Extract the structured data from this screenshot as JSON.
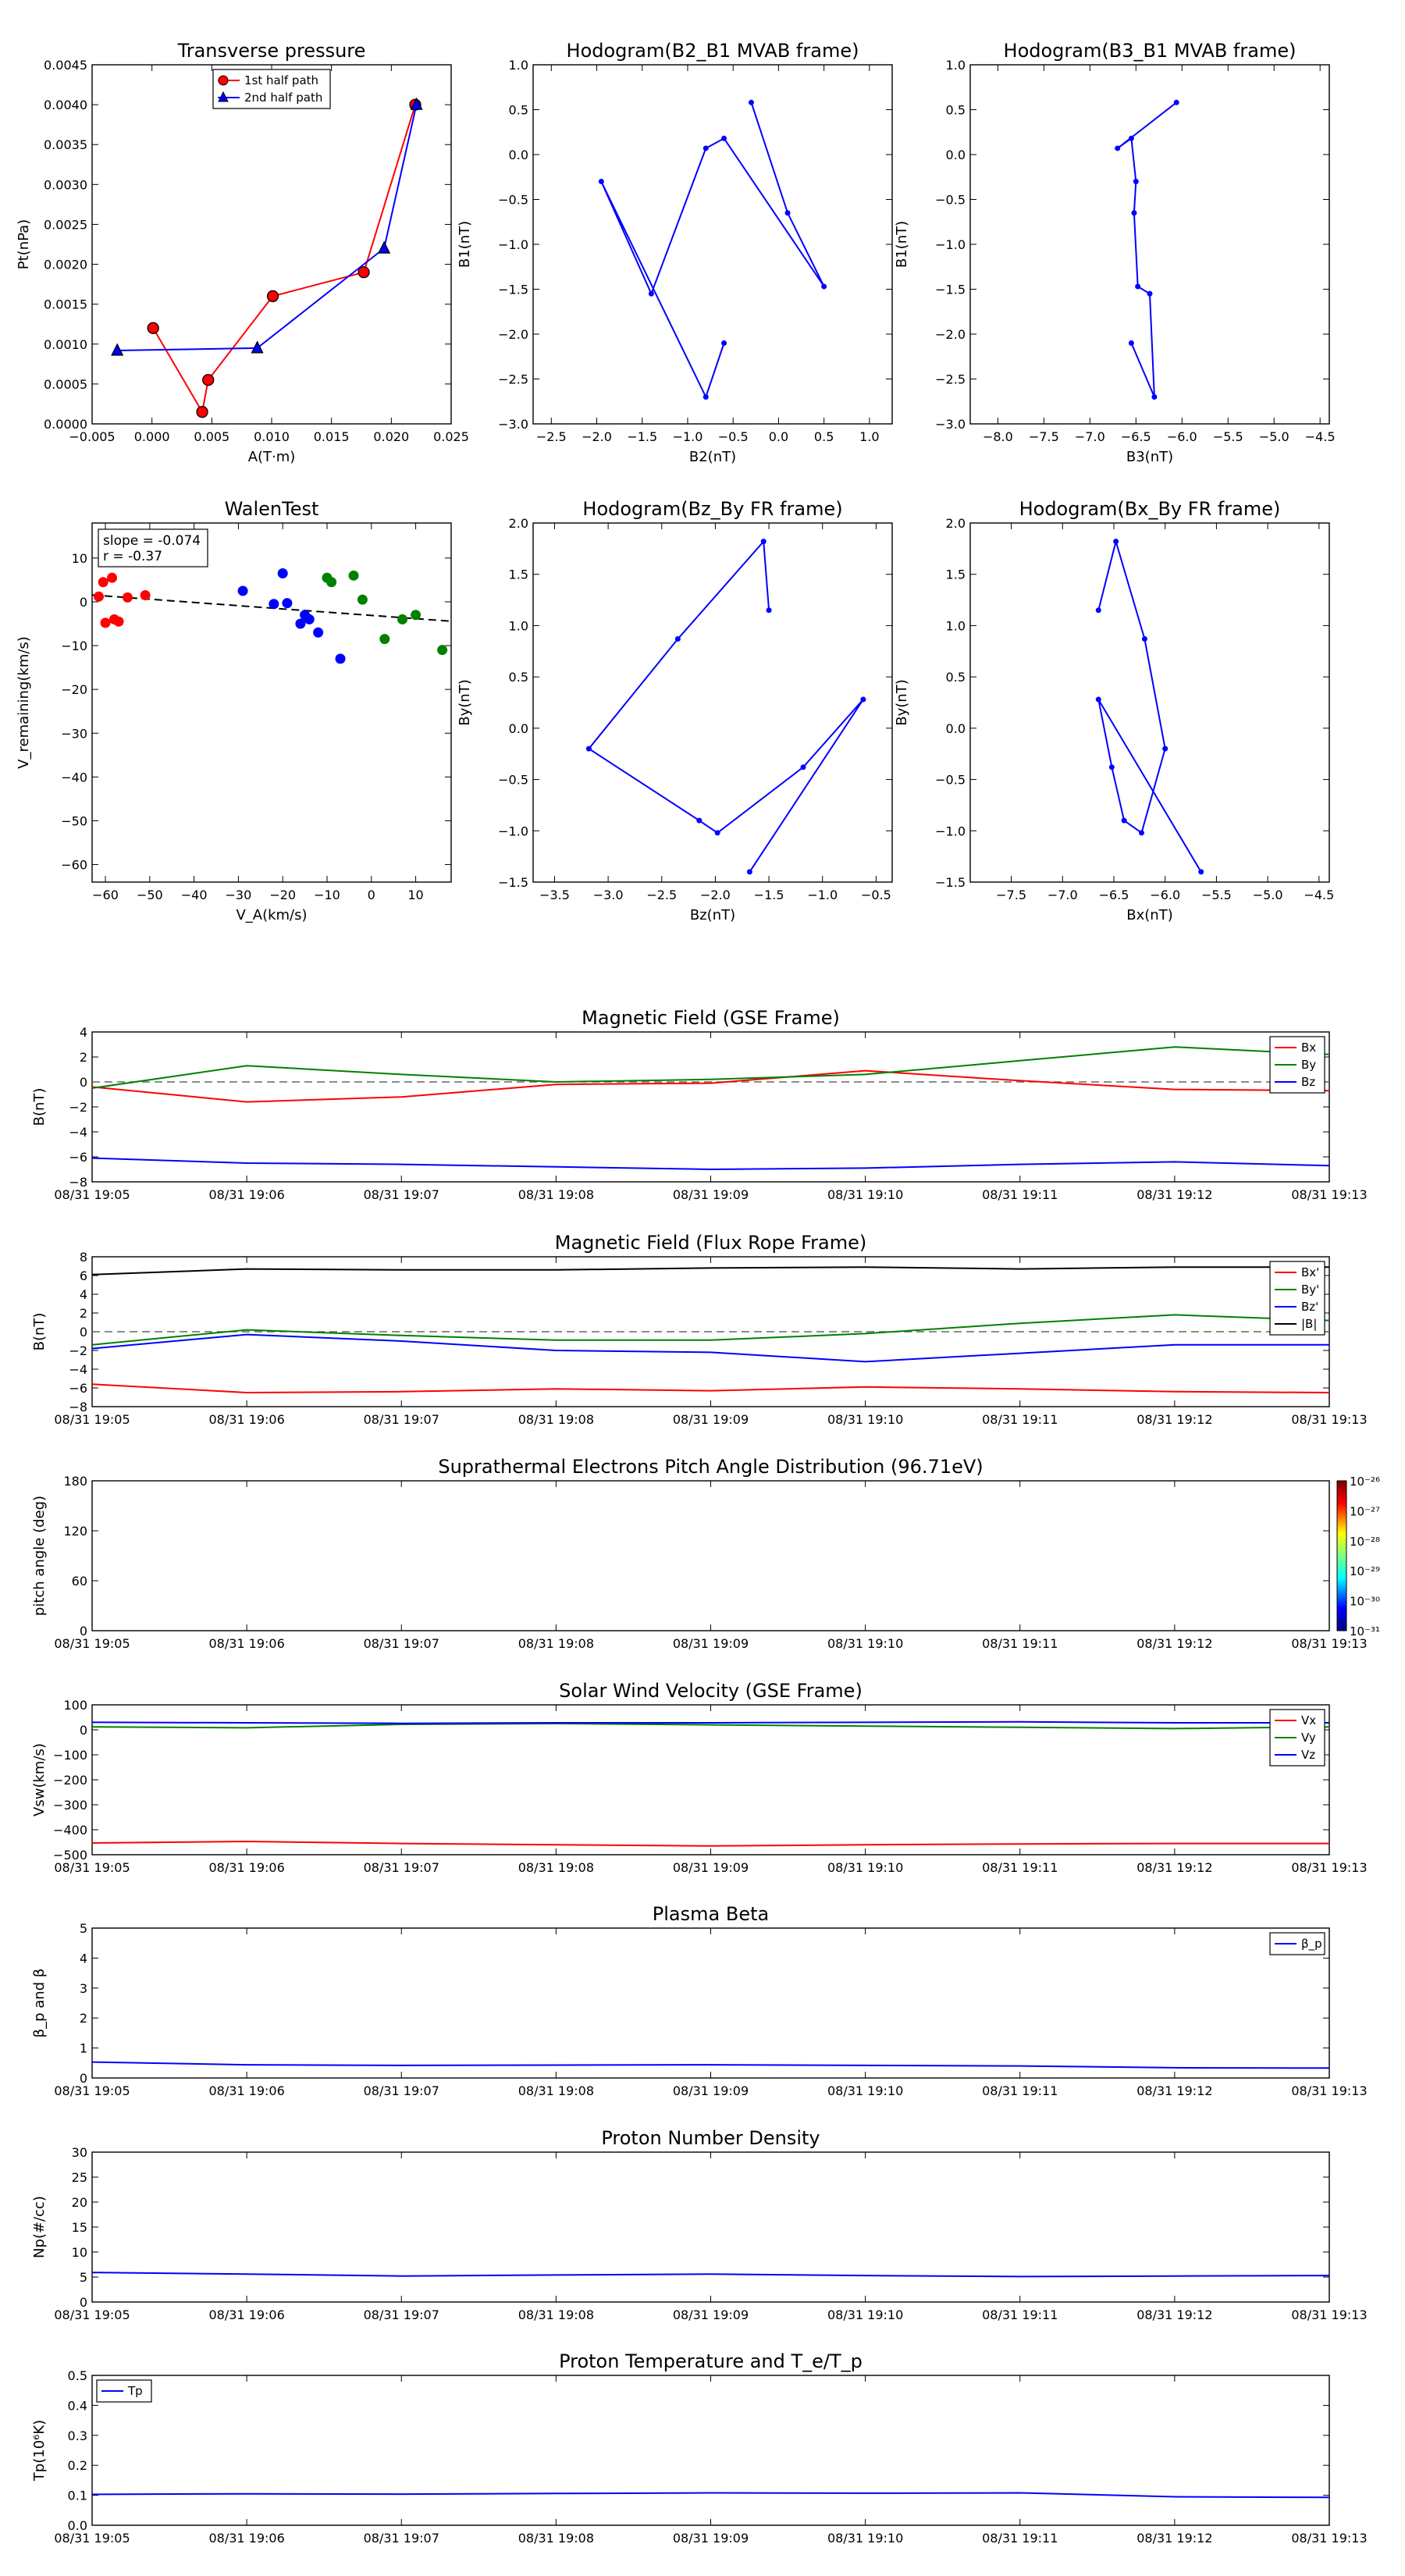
{
  "chart_data": [
    {
      "type": "line",
      "title": "Transverse pressure",
      "xlabel": "A(T·m)",
      "ylabel": "Pt(nPa)",
      "xlim": [
        -0.005,
        0.025
      ],
      "ylim": [
        0,
        0.0045
      ],
      "xticks": [
        -0.005,
        0,
        0.005,
        0.01,
        0.015,
        0.02,
        0.025
      ],
      "xtick_labels": [
        "−0.005",
        "0.000",
        "0.005",
        "0.010",
        "0.015",
        "0.020",
        "0.025"
      ],
      "yticks": [
        0,
        0.0005,
        0.001,
        0.0015,
        0.002,
        0.0025,
        0.003,
        0.0035,
        0.004,
        0.0045
      ],
      "ytick_labels": [
        "0.0000",
        "0.0005",
        "0.0010",
        "0.0015",
        "0.0020",
        "0.0025",
        "0.0030",
        "0.0035",
        "0.0040",
        "0.0045"
      ],
      "legend_position": "top-center",
      "series": [
        {
          "name": "1st half path",
          "color": "#ff0000",
          "marker": "circle",
          "x": [
            0.022,
            0.0177,
            0.0101,
            0.0047,
            0.0042,
            0.0001
          ],
          "y": [
            0.004,
            0.0019,
            0.0016,
            0.00055,
            0.00015,
            0.0012
          ]
        },
        {
          "name": "2nd half path",
          "color": "#0000ff",
          "marker": "triangle",
          "x": [
            -0.0029,
            0.0088,
            0.0194,
            0.0221
          ],
          "y": [
            0.00092,
            0.00095,
            0.0022,
            0.004
          ]
        }
      ]
    },
    {
      "type": "line",
      "title": "Hodogram(B2_B1 MVAB frame)",
      "xlabel": "B2(nT)",
      "ylabel": "B1(nT)",
      "xlim": [
        -2.7,
        1.25
      ],
      "ylim": [
        -3.0,
        1.0
      ],
      "xticks": [
        -2.5,
        -2.0,
        -1.5,
        -1.0,
        -0.5,
        0.0,
        0.5,
        1.0
      ],
      "xtick_labels": [
        "−2.5",
        "−2.0",
        "−1.5",
        "−1.0",
        "−0.5",
        "0.0",
        "0.5",
        "1.0"
      ],
      "yticks": [
        -3.0,
        -2.5,
        -2.0,
        -1.5,
        -1.0,
        -0.5,
        0.0,
        0.5,
        1.0
      ],
      "ytick_labels": [
        "−3.0",
        "−2.5",
        "−2.0",
        "−1.5",
        "−1.0",
        "−0.5",
        "0.0",
        "0.5",
        "1.0"
      ],
      "series": [
        {
          "color": "#0000ff",
          "x": [
            -0.6,
            -0.8,
            -1.95,
            -1.4,
            -0.8,
            -0.6,
            0.5,
            0.1,
            -0.3
          ],
          "y": [
            -2.1,
            -2.7,
            -0.3,
            -1.55,
            0.07,
            0.18,
            -1.47,
            -0.65,
            0.58
          ]
        }
      ]
    },
    {
      "type": "line",
      "title": "Hodogram(B3_B1 MVAB frame)",
      "xlabel": "B3(nT)",
      "ylabel": "B1(nT)",
      "xlim": [
        -8.3,
        -4.4
      ],
      "ylim": [
        -3.0,
        1.0
      ],
      "xticks": [
        -8.0,
        -7.5,
        -7.0,
        -6.5,
        -6.0,
        -5.5,
        -5.0,
        -4.5
      ],
      "xtick_labels": [
        "−8.0",
        "−7.5",
        "−7.0",
        "−6.5",
        "−6.0",
        "−5.5",
        "−5.0",
        "−4.5"
      ],
      "yticks": [
        -3.0,
        -2.5,
        -2.0,
        -1.5,
        -1.0,
        -0.5,
        0.0,
        0.5,
        1.0
      ],
      "ytick_labels": [
        "−3.0",
        "−2.5",
        "−2.0",
        "−1.5",
        "−1.0",
        "−0.5",
        "0.0",
        "0.5",
        "1.0"
      ],
      "series": [
        {
          "color": "#0000ff",
          "x": [
            -6.55,
            -6.3,
            -6.35,
            -6.48,
            -6.52,
            -6.5,
            -6.55,
            -6.7,
            -6.06
          ],
          "y": [
            -2.1,
            -2.7,
            -1.55,
            -1.47,
            -0.65,
            -0.3,
            0.18,
            0.07,
            0.58
          ]
        }
      ]
    },
    {
      "type": "scatter",
      "title": "WalenTest",
      "xlabel": "V_A(km/s)",
      "ylabel": "V_remaining(km/s)",
      "xlim": [
        -63,
        18
      ],
      "ylim": [
        -64,
        18
      ],
      "xticks": [
        -60,
        -50,
        -40,
        -30,
        -20,
        -10,
        0,
        10
      ],
      "xtick_labels": [
        "−60",
        "−50",
        "−40",
        "−30",
        "−20",
        "−10",
        "0",
        "10"
      ],
      "yticks": [
        -60,
        -50,
        -40,
        -30,
        -20,
        -10,
        0,
        10
      ],
      "ytick_labels": [
        "−60",
        "−50",
        "−40",
        "−30",
        "−20",
        "−10",
        "0",
        "10"
      ],
      "annotation": [
        "slope = -0.074",
        "r = -0.37"
      ],
      "fit_line": {
        "slope": -0.074,
        "intercept": -3.1
      },
      "series": [
        {
          "color": "#ff0000",
          "x": [
            -61.5,
            -60.5,
            -60,
            -58.5,
            -58,
            -57,
            -55,
            -51
          ],
          "y": [
            1.2,
            4.5,
            -4.8,
            5.5,
            -4,
            -4.5,
            1,
            1.5
          ]
        },
        {
          "color": "#0000ff",
          "x": [
            -29,
            -22,
            -20,
            -19,
            -16,
            -15,
            -14,
            -12,
            -7
          ],
          "y": [
            2.5,
            -0.5,
            6.5,
            -0.3,
            -5,
            -3,
            -4,
            -7,
            -13
          ]
        },
        {
          "color": "#008000",
          "x": [
            -10,
            -9,
            -4,
            -2,
            3,
            7,
            10,
            16
          ],
          "y": [
            5.5,
            4.5,
            6,
            0.5,
            -8.5,
            -4,
            -3,
            -11
          ]
        }
      ]
    },
    {
      "type": "line",
      "title": "Hodogram(Bz_By FR frame)",
      "xlabel": "Bz(nT)",
      "ylabel": "By(nT)",
      "xlim": [
        -3.7,
        -0.35
      ],
      "ylim": [
        -1.5,
        2.0
      ],
      "xticks": [
        -3.5,
        -3.0,
        -2.5,
        -2.0,
        -1.5,
        -1.0,
        -0.5
      ],
      "xtick_labels": [
        "−3.5",
        "−3.0",
        "−2.5",
        "−2.0",
        "−1.5",
        "−1.0",
        "−0.5"
      ],
      "yticks": [
        -1.5,
        -1.0,
        -0.5,
        0.0,
        0.5,
        1.0,
        1.5,
        2.0
      ],
      "ytick_labels": [
        "−1.5",
        "−1.0",
        "−0.5",
        "0.0",
        "0.5",
        "1.0",
        "1.5",
        "2.0"
      ],
      "series": [
        {
          "color": "#0000ff",
          "x": [
            -1.5,
            -1.55,
            -2.35,
            -3.18,
            -2.15,
            -1.98,
            -1.18,
            -0.62,
            -1.68
          ],
          "y": [
            1.15,
            1.82,
            0.87,
            -0.2,
            -0.9,
            -1.02,
            -0.38,
            0.28,
            -1.4
          ]
        }
      ]
    },
    {
      "type": "line",
      "title": "Hodogram(Bx_By FR frame)",
      "xlabel": "Bx(nT)",
      "ylabel": "By(nT)",
      "xlim": [
        -7.9,
        -4.4
      ],
      "ylim": [
        -1.5,
        2.0
      ],
      "xticks": [
        -7.5,
        -7.0,
        -6.5,
        -6.0,
        -5.5,
        -5.0,
        -4.5
      ],
      "xtick_labels": [
        "−7.5",
        "−7.0",
        "−6.5",
        "−6.0",
        "−5.5",
        "−5.0",
        "−4.5"
      ],
      "yticks": [
        -1.5,
        -1.0,
        -0.5,
        0.0,
        0.5,
        1.0,
        1.5,
        2.0
      ],
      "ytick_labels": [
        "−1.5",
        "−1.0",
        "−0.5",
        "0.0",
        "0.5",
        "1.0",
        "1.5",
        "2.0"
      ],
      "series": [
        {
          "color": "#0000ff",
          "x": [
            -6.65,
            -6.48,
            -6.2,
            -6.0,
            -6.23,
            -6.4,
            -6.52,
            -6.65,
            -5.65
          ],
          "y": [
            1.15,
            1.82,
            0.87,
            -0.2,
            -1.02,
            -0.9,
            -0.38,
            0.28,
            -1.4
          ]
        }
      ]
    },
    {
      "type": "line",
      "title": "Magnetic Field (GSE Frame)",
      "xlabel": "",
      "ylabel": "B(nT)",
      "xlim": [
        0,
        8
      ],
      "ylim": [
        -8,
        4
      ],
      "xtick_labels": [
        "08/31 19:05",
        "08/31 19:06",
        "08/31 19:07",
        "08/31 19:08",
        "08/31 19:09",
        "08/31 19:10",
        "08/31 19:11",
        "08/31 19:12",
        "08/31 19:13"
      ],
      "yticks": [
        -8,
        -6,
        -4,
        -2,
        0,
        2,
        4
      ],
      "ytick_labels": [
        "−8",
        "−6",
        "−4",
        "−2",
        "0",
        "2",
        "4"
      ],
      "zero_line": true,
      "legend_position": "top-right",
      "series": [
        {
          "name": "Bx",
          "color": "#ff0000",
          "x": [
            0,
            1,
            2,
            3,
            4,
            5,
            6,
            7,
            8
          ],
          "y": [
            -0.4,
            -1.6,
            -1.2,
            -0.2,
            -0.1,
            0.9,
            0.1,
            -0.6,
            -0.7
          ]
        },
        {
          "name": "By",
          "color": "#008000",
          "x": [
            0,
            1,
            2,
            3,
            4,
            5,
            6,
            7,
            8
          ],
          "y": [
            -0.5,
            1.3,
            0.6,
            0,
            0.2,
            0.6,
            1.7,
            2.8,
            2.2
          ]
        },
        {
          "name": "Bz",
          "color": "#0000ff",
          "x": [
            0,
            1,
            2,
            3,
            4,
            5,
            6,
            7,
            8
          ],
          "y": [
            -6.1,
            -6.5,
            -6.6,
            -6.8,
            -7.0,
            -6.9,
            -6.6,
            -6.4,
            -6.7
          ]
        }
      ]
    },
    {
      "type": "line",
      "title": "Magnetic Field (Flux Rope Frame)",
      "xlabel": "",
      "ylabel": "B(nT)",
      "xlim": [
        0,
        8
      ],
      "ylim": [
        -8,
        8
      ],
      "xtick_labels": [
        "08/31 19:05",
        "08/31 19:06",
        "08/31 19:07",
        "08/31 19:08",
        "08/31 19:09",
        "08/31 19:10",
        "08/31 19:11",
        "08/31 19:12",
        "08/31 19:13"
      ],
      "yticks": [
        -8,
        -6,
        -4,
        -2,
        0,
        2,
        4,
        6,
        8
      ],
      "ytick_labels": [
        "−8",
        "−6",
        "−4",
        "−2",
        "0",
        "2",
        "4",
        "6",
        "8"
      ],
      "zero_line": true,
      "legend_position": "top-right",
      "series": [
        {
          "name": "Bx'",
          "color": "#ff0000",
          "x": [
            0,
            1,
            2,
            3,
            4,
            5,
            6,
            7,
            8
          ],
          "y": [
            -5.6,
            -6.5,
            -6.4,
            -6.1,
            -6.3,
            -5.9,
            -6.1,
            -6.4,
            -6.5
          ]
        },
        {
          "name": "By'",
          "color": "#008000",
          "x": [
            0,
            1,
            2,
            3,
            4,
            5,
            6,
            7,
            8
          ],
          "y": [
            -1.4,
            0.2,
            -0.4,
            -0.9,
            -0.9,
            -0.2,
            0.9,
            1.8,
            1.2
          ]
        },
        {
          "name": "Bz'",
          "color": "#0000ff",
          "x": [
            0,
            1,
            2,
            3,
            4,
            5,
            6,
            7,
            8
          ],
          "y": [
            -1.8,
            -0.3,
            -1.0,
            -2.0,
            -2.2,
            -3.2,
            -2.3,
            -1.4,
            -1.4
          ]
        },
        {
          "name": "|B|",
          "color": "#000000",
          "x": [
            0,
            1,
            2,
            3,
            4,
            5,
            6,
            7,
            8
          ],
          "y": [
            6.1,
            6.7,
            6.6,
            6.6,
            6.8,
            6.9,
            6.7,
            6.9,
            6.9
          ]
        }
      ]
    },
    {
      "type": "heatmap",
      "title": "Suprathermal Electrons Pitch Angle Distribution (96.71eV)",
      "xlabel": "",
      "ylabel": "pitch angle (deg)",
      "xlim": [
        0,
        8
      ],
      "ylim": [
        0,
        180
      ],
      "xtick_labels": [
        "08/31 19:05",
        "08/31 19:06",
        "08/31 19:07",
        "08/31 19:08",
        "08/31 19:09",
        "08/31 19:10",
        "08/31 19:11",
        "08/31 19:12",
        "08/31 19:13"
      ],
      "yticks": [
        0,
        60,
        120,
        180
      ],
      "ytick_labels": [
        "0",
        "60",
        "120",
        "180"
      ],
      "colorbar_labels": [
        "10⁻²⁶",
        "10⁻²⁷",
        "10⁻²⁸",
        "10⁻²⁹",
        "10⁻³⁰",
        "10⁻³¹"
      ],
      "colorbar_range": [
        -31,
        -26
      ],
      "values": []
    },
    {
      "type": "line",
      "title": "Solar Wind Velocity (GSE Frame)",
      "xlabel": "",
      "ylabel": "Vsw(km/s)",
      "xlim": [
        0,
        8
      ],
      "ylim": [
        -500,
        100
      ],
      "xtick_labels": [
        "08/31 19:05",
        "08/31 19:06",
        "08/31 19:07",
        "08/31 19:08",
        "08/31 19:09",
        "08/31 19:10",
        "08/31 19:11",
        "08/31 19:12",
        "08/31 19:13"
      ],
      "yticks": [
        -500,
        -400,
        -300,
        -200,
        -100,
        0,
        100
      ],
      "ytick_labels": [
        "−500",
        "−400",
        "−300",
        "−200",
        "−100",
        "0",
        "100"
      ],
      "legend_position": "top-right",
      "series": [
        {
          "name": "Vx",
          "color": "#ff0000",
          "x": [
            0,
            1,
            2,
            3,
            4,
            5,
            6,
            7,
            8
          ],
          "y": [
            -453,
            -447,
            -455,
            -460,
            -465,
            -460,
            -457,
            -455,
            -455
          ]
        },
        {
          "name": "Vy",
          "color": "#008000",
          "x": [
            0,
            1,
            2,
            3,
            4,
            5,
            6,
            7,
            8
          ],
          "y": [
            12,
            8,
            22,
            25,
            20,
            15,
            10,
            5,
            12
          ]
        },
        {
          "name": "Vz",
          "color": "#0000ff",
          "x": [
            0,
            1,
            2,
            3,
            4,
            5,
            6,
            7,
            8
          ],
          "y": [
            30,
            28,
            26,
            28,
            28,
            30,
            32,
            28,
            28
          ]
        }
      ]
    },
    {
      "type": "line",
      "title": "Plasma Beta",
      "xlabel": "",
      "ylabel": "β_p and β",
      "xlim": [
        0,
        8
      ],
      "ylim": [
        0,
        5
      ],
      "xtick_labels": [
        "08/31 19:05",
        "08/31 19:06",
        "08/31 19:07",
        "08/31 19:08",
        "08/31 19:09",
        "08/31 19:10",
        "08/31 19:11",
        "08/31 19:12",
        "08/31 19:13"
      ],
      "yticks": [
        0,
        1,
        2,
        3,
        4,
        5
      ],
      "ytick_labels": [
        "0",
        "1",
        "2",
        "3",
        "4",
        "5"
      ],
      "legend_position": "top-right",
      "series": [
        {
          "name": "β_p",
          "color": "#0000ff",
          "x": [
            0,
            1,
            2,
            3,
            4,
            5,
            6,
            7,
            8
          ],
          "y": [
            0.53,
            0.44,
            0.42,
            0.43,
            0.44,
            0.42,
            0.4,
            0.34,
            0.33
          ]
        }
      ]
    },
    {
      "type": "line",
      "title": "Proton Number Density",
      "xlabel": "",
      "ylabel": "Np(#/cc)",
      "xlim": [
        0,
        8
      ],
      "ylim": [
        0,
        30
      ],
      "xtick_labels": [
        "08/31 19:05",
        "08/31 19:06",
        "08/31 19:07",
        "08/31 19:08",
        "08/31 19:09",
        "08/31 19:10",
        "08/31 19:11",
        "08/31 19:12",
        "08/31 19:13"
      ],
      "yticks": [
        0,
        5,
        10,
        15,
        20,
        25,
        30
      ],
      "ytick_labels": [
        "0",
        "5",
        "10",
        "15",
        "20",
        "25",
        "30"
      ],
      "series": [
        {
          "color": "#0000ff",
          "x": [
            0,
            1,
            2,
            3,
            4,
            5,
            6,
            7,
            8
          ],
          "y": [
            5.9,
            5.6,
            5.2,
            5.4,
            5.6,
            5.3,
            5.1,
            5.2,
            5.3
          ]
        }
      ]
    },
    {
      "type": "line",
      "title": "Proton Temperature and T_e/T_p",
      "xlabel": "",
      "ylabel": "Tp(10⁶K)",
      "xlim": [
        0,
        8
      ],
      "ylim": [
        0,
        0.5
      ],
      "xtick_labels": [
        "08/31 19:05",
        "08/31 19:06",
        "08/31 19:07",
        "08/31 19:08",
        "08/31 19:09",
        "08/31 19:10",
        "08/31 19:11",
        "08/31 19:12",
        "08/31 19:13"
      ],
      "yticks": [
        0,
        0.1,
        0.2,
        0.3,
        0.4,
        0.5
      ],
      "ytick_labels": [
        "0.0",
        "0.1",
        "0.2",
        "0.3",
        "0.4",
        "0.5"
      ],
      "legend_position": "top-left",
      "series": [
        {
          "name": "Tp",
          "color": "#0000ff",
          "x": [
            0,
            1,
            2,
            3,
            4,
            5,
            6,
            7,
            8
          ],
          "y": [
            0.103,
            0.105,
            0.104,
            0.106,
            0.108,
            0.107,
            0.108,
            0.095,
            0.093
          ]
        }
      ]
    }
  ]
}
